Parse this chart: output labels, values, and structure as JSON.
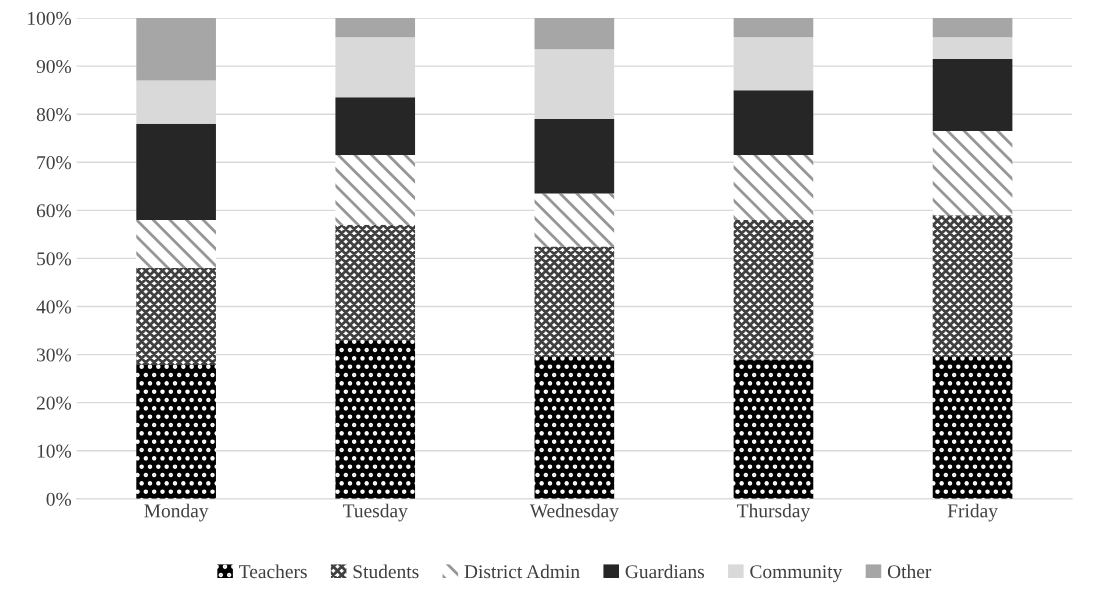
{
  "chart_data": {
    "type": "bar",
    "stacked": true,
    "categories": [
      "Monday",
      "Tuesday",
      "Wednesday",
      "Thursday",
      "Friday"
    ],
    "series": [
      {
        "name": "Teachers",
        "color": "#000000",
        "values": [
          28,
          33,
          29.5,
          29,
          29.5
        ]
      },
      {
        "name": "Students",
        "color": "#404040",
        "values": [
          20,
          24,
          23,
          29,
          29.5
        ]
      },
      {
        "name": "District Admin",
        "color": "#969696",
        "values": [
          10,
          14.5,
          11,
          13.5,
          17.5
        ]
      },
      {
        "name": "Guardians",
        "color": "#262626",
        "values": [
          20,
          12,
          15.5,
          13.5,
          15
        ]
      },
      {
        "name": "Community",
        "color": "#d9d9d9",
        "values": [
          9,
          12.5,
          14.5,
          11,
          4.5
        ]
      },
      {
        "name": "Other",
        "color": "#a6a6a6",
        "values": [
          13,
          4,
          6.5,
          4,
          4
        ]
      }
    ],
    "ylim": [
      0,
      100
    ],
    "yticks": [
      {
        "value": 0,
        "label": "0%"
      },
      {
        "value": 10,
        "label": "10%"
      },
      {
        "value": 20,
        "label": "20%"
      },
      {
        "value": 30,
        "label": "30%"
      },
      {
        "value": 40,
        "label": "40%"
      },
      {
        "value": 50,
        "label": "50%"
      },
      {
        "value": 60,
        "label": "60%"
      },
      {
        "value": 70,
        "label": "70%"
      },
      {
        "value": 80,
        "label": "80%"
      },
      {
        "value": 90,
        "label": "90%"
      },
      {
        "value": 100,
        "label": "100%"
      }
    ],
    "grid": "y",
    "legend": "bottom"
  }
}
